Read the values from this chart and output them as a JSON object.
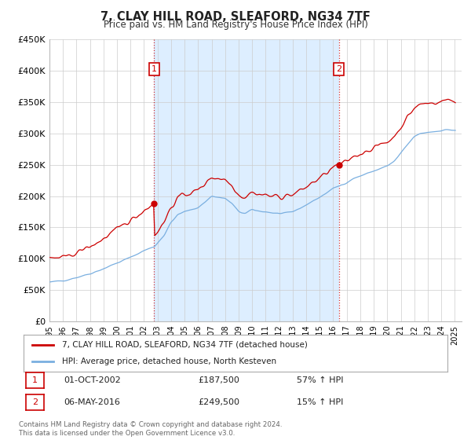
{
  "title": "7, CLAY HILL ROAD, SLEAFORD, NG34 7TF",
  "subtitle": "Price paid vs. HM Land Registry's House Price Index (HPI)",
  "legend_line1": "7, CLAY HILL ROAD, SLEAFORD, NG34 7TF (detached house)",
  "legend_line2": "HPI: Average price, detached house, North Kesteven",
  "annotation1_date": "01-OCT-2002",
  "annotation1_price": "£187,500",
  "annotation1_hpi": "57% ↑ HPI",
  "annotation2_date": "06-MAY-2016",
  "annotation2_price": "£249,500",
  "annotation2_hpi": "15% ↑ HPI",
  "footer": "Contains HM Land Registry data © Crown copyright and database right 2024.\nThis data is licensed under the Open Government Licence v3.0.",
  "red_line_color": "#cc0000",
  "blue_line_color": "#7aafe0",
  "shade_color": "#ddeeff",
  "annotation_color": "#cc0000",
  "grid_color": "#cccccc",
  "background_color": "#ffffff",
  "ylim": [
    0,
    450000
  ],
  "yticks": [
    0,
    50000,
    100000,
    150000,
    200000,
    250000,
    300000,
    350000,
    400000,
    450000
  ],
  "ytick_labels": [
    "£0",
    "£50K",
    "£100K",
    "£150K",
    "£200K",
    "£250K",
    "£300K",
    "£350K",
    "£400K",
    "£450K"
  ],
  "sale1_year": 2002.75,
  "sale1_price": 187500,
  "sale2_year": 2016.42,
  "sale2_price": 249500
}
